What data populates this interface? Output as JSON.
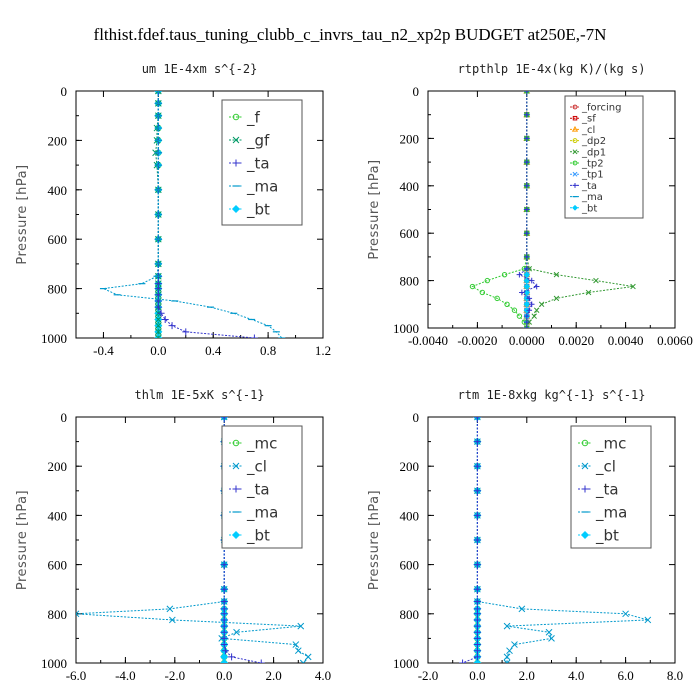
{
  "figure_title": "flthist.fdef.taus_tuning_clubb_c_invrs_tau_n2_xp2p  BUDGET at250E,-7N",
  "chart_data": [
    {
      "type": "line",
      "title": "um   1E-4xm s^{-2}",
      "ylabel": "Pressure [hPa]",
      "xlim": [
        -0.6,
        1.2
      ],
      "ylim": [
        1000,
        0
      ],
      "xticks": [
        -0.4,
        0.0,
        0.4,
        0.8,
        1.2
      ],
      "xtick_labels": [
        "-0.4",
        "0.0",
        "0.4",
        "0.8",
        "1.2"
      ],
      "yticks": [
        0,
        200,
        400,
        600,
        800,
        1000
      ],
      "ytick_labels": [
        "0",
        "200",
        "400",
        "600",
        "800",
        "1000"
      ],
      "legend": {
        "position": "top-right",
        "entries": [
          "_f",
          "_gf",
          "_ta",
          "_ma",
          "_bt"
        ]
      },
      "y": [
        0,
        50,
        100,
        150,
        200,
        250,
        300,
        400,
        500,
        600,
        700,
        750,
        780,
        800,
        825,
        850,
        875,
        900,
        925,
        950,
        975,
        1000
      ],
      "series": [
        {
          "name": "_f",
          "color": "#33cc33",
          "marker": "circle",
          "x": [
            0.0,
            0.0,
            0.0,
            0.0,
            0.0,
            0.0,
            0.0,
            0.0,
            0.0,
            0.0,
            0.0,
            0.0,
            0.0,
            0.0,
            0.0,
            0.0,
            0.0,
            0.0,
            0.0,
            0.0,
            0.0,
            0.0
          ]
        },
        {
          "name": "_gf",
          "color": "#009966",
          "marker": "x",
          "x": [
            0.0,
            0.0,
            0.0,
            -0.01,
            -0.01,
            -0.02,
            -0.01,
            0.0,
            0.0,
            0.0,
            0.0,
            0.0,
            0.0,
            0.0,
            0.0,
            0.0,
            0.0,
            0.0,
            0.0,
            0.0,
            0.0,
            0.0
          ]
        },
        {
          "name": "_ta",
          "color": "#3333cc",
          "marker": "plus",
          "x": [
            0.0,
            0.0,
            0.0,
            0.0,
            0.0,
            0.0,
            0.0,
            0.0,
            0.0,
            0.0,
            0.0,
            0.0,
            0.0,
            0.0,
            0.0,
            0.0,
            0.0,
            0.02,
            0.05,
            0.1,
            0.2,
            0.7
          ]
        },
        {
          "name": "_ma",
          "color": "#0099cc",
          "marker": "dash",
          "x": [
            0.0,
            0.0,
            0.0,
            0.0,
            0.0,
            0.0,
            0.0,
            0.0,
            0.0,
            0.0,
            0.0,
            -0.01,
            -0.12,
            -0.4,
            -0.3,
            0.12,
            0.38,
            0.55,
            0.68,
            0.8,
            0.86,
            0.9
          ]
        },
        {
          "name": "_bt",
          "color": "#00ccff",
          "marker": "diamond",
          "x": [
            0.0,
            0.0,
            0.0,
            0.0,
            0.0,
            0.0,
            0.0,
            0.0,
            0.0,
            0.0,
            0.0,
            0.0,
            0.0,
            0.0,
            0.0,
            0.0,
            0.0,
            0.0,
            0.0,
            0.0,
            0.0,
            0.0
          ]
        }
      ]
    },
    {
      "type": "line",
      "title": "rtpthlp   1E-4x(kg K)/(kg s)",
      "ylabel": "Pressure [hPa]",
      "xlim": [
        -0.004,
        0.006
      ],
      "ylim": [
        1000,
        0
      ],
      "xticks": [
        -0.004,
        -0.002,
        0.0,
        0.002,
        0.004,
        0.006
      ],
      "xtick_labels": [
        "-0.0040",
        "-0.0020",
        "0.0000",
        "0.0020",
        "0.0040",
        "0.0060"
      ],
      "yticks": [
        0,
        200,
        400,
        600,
        800,
        1000
      ],
      "ytick_labels": [
        "0",
        "200",
        "400",
        "600",
        "800",
        "1000"
      ],
      "legend": {
        "position": "top-right",
        "entries": [
          "_forcing",
          "_sf",
          "_cl",
          "_dp2",
          "_dp1",
          "_tp2",
          "_tp1",
          "_ta",
          "_ma",
          "_bt"
        ]
      },
      "y": [
        0,
        100,
        200,
        300,
        400,
        500,
        600,
        700,
        750,
        775,
        800,
        825,
        850,
        875,
        900,
        925,
        950,
        975,
        1000
      ],
      "series": [
        {
          "name": "_forcing",
          "color": "#cc3333",
          "marker": "circle",
          "x": [
            0,
            0,
            0,
            0,
            0,
            0,
            0,
            0,
            0,
            0,
            0,
            0,
            0,
            0,
            0,
            0,
            0,
            0,
            0
          ]
        },
        {
          "name": "_sf",
          "color": "#cc0000",
          "marker": "square",
          "x": [
            0,
            0,
            0,
            0,
            0,
            0,
            0,
            0,
            0,
            0,
            0,
            0,
            0,
            0,
            0,
            0,
            0,
            0,
            0
          ]
        },
        {
          "name": "_cl",
          "color": "#ff9900",
          "marker": "triangle",
          "x": [
            0,
            0,
            0,
            0,
            0,
            0,
            0,
            0,
            0,
            0,
            0,
            0,
            0,
            0,
            0,
            0,
            0,
            0,
            0
          ]
        },
        {
          "name": "_dp2",
          "color": "#cccc00",
          "marker": "circle",
          "x": [
            0,
            0,
            0,
            0,
            0,
            0,
            0,
            0,
            0,
            0,
            0,
            0,
            0,
            0,
            0,
            0,
            0,
            0,
            0
          ]
        },
        {
          "name": "_dp1",
          "color": "#339933",
          "marker": "x",
          "x": [
            0,
            0,
            0,
            0,
            0,
            0,
            0,
            0,
            0.0001,
            0.0012,
            0.0028,
            0.0043,
            0.0025,
            0.0012,
            0.0006,
            0.0004,
            0.0003,
            0.0001,
            0
          ]
        },
        {
          "name": "_tp2",
          "color": "#33cc33",
          "marker": "circle",
          "x": [
            0,
            0,
            0,
            0,
            0,
            0,
            0,
            0,
            -0.0001,
            -0.0009,
            -0.0016,
            -0.0022,
            -0.0018,
            -0.0012,
            -0.0008,
            -0.0005,
            -0.0003,
            -0.0001,
            0
          ]
        },
        {
          "name": "_tp1",
          "color": "#3399ff",
          "marker": "x",
          "x": [
            0,
            0,
            0,
            0,
            0,
            0,
            0,
            0,
            0,
            0,
            0,
            0,
            0,
            0,
            0,
            0,
            0,
            0,
            0
          ]
        },
        {
          "name": "_ta",
          "color": "#3333cc",
          "marker": "plus",
          "x": [
            0,
            0,
            0,
            0,
            0,
            0,
            0,
            0,
            0,
            -0.0003,
            0.0002,
            0.0004,
            -0.0002,
            0.0001,
            0.0002,
            0.0001,
            0,
            0,
            0
          ]
        },
        {
          "name": "_ma",
          "color": "#0099cc",
          "marker": "dash",
          "x": [
            0,
            0,
            0,
            0,
            0,
            0,
            0,
            0,
            0,
            0,
            0,
            0,
            0,
            0,
            0,
            0,
            0,
            0,
            0
          ]
        },
        {
          "name": "_bt",
          "color": "#00ccff",
          "marker": "diamond",
          "x": [
            0,
            0,
            0,
            0,
            0,
            0,
            0,
            0,
            0,
            0,
            0,
            0,
            0,
            0,
            0,
            0,
            0,
            0,
            0
          ]
        }
      ]
    },
    {
      "type": "line",
      "title": "thlm   1E-5xK s^{-1}",
      "ylabel": "Pressure [hPa]",
      "xlim": [
        -6.0,
        4.0
      ],
      "ylim": [
        1000,
        0
      ],
      "xticks": [
        -6.0,
        -4.0,
        -2.0,
        0.0,
        2.0,
        4.0
      ],
      "xtick_labels": [
        "-6.0",
        "-4.0",
        "-2.0",
        "0.0",
        "2.0",
        "4.0"
      ],
      "yticks": [
        0,
        200,
        400,
        600,
        800,
        1000
      ],
      "ytick_labels": [
        "0",
        "200",
        "400",
        "600",
        "800",
        "1000"
      ],
      "legend": {
        "position": "top-right",
        "entries": [
          "_mc",
          "_cl",
          "_ta",
          "_ma",
          "_bt"
        ]
      },
      "y": [
        0,
        100,
        200,
        300,
        400,
        500,
        600,
        700,
        750,
        780,
        800,
        825,
        850,
        875,
        900,
        925,
        950,
        975,
        1000
      ],
      "series": [
        {
          "name": "_mc",
          "color": "#33cc33",
          "marker": "circle",
          "x": [
            0,
            0,
            0,
            0,
            0,
            0,
            0,
            0,
            0,
            0,
            0,
            0,
            0,
            0,
            0,
            0,
            0,
            0,
            0
          ]
        },
        {
          "name": "_cl",
          "color": "#0099cc",
          "marker": "x",
          "x": [
            0,
            0,
            0,
            0,
            0,
            0,
            0,
            0,
            0,
            -2.2,
            -6.0,
            -2.1,
            3.1,
            0.5,
            -0.1,
            2.9,
            3.0,
            3.4,
            3.2
          ]
        },
        {
          "name": "_ta",
          "color": "#3333cc",
          "marker": "plus",
          "x": [
            0,
            0,
            0,
            0,
            0,
            0,
            0,
            0,
            0,
            0,
            0,
            0,
            0,
            0,
            0,
            0,
            0.05,
            0.3,
            1.5
          ]
        },
        {
          "name": "_ma",
          "color": "#0099cc",
          "marker": "dash",
          "x": [
            0,
            0,
            0,
            0,
            0,
            0,
            0,
            0,
            0,
            0,
            0,
            0,
            0,
            0,
            0,
            0,
            0,
            0,
            0
          ]
        },
        {
          "name": "_bt",
          "color": "#00ccff",
          "marker": "diamond",
          "x": [
            0,
            0,
            0,
            0,
            0,
            0,
            0,
            0,
            0,
            0,
            0,
            0,
            0,
            0,
            0,
            0,
            0,
            0,
            0
          ]
        }
      ]
    },
    {
      "type": "line",
      "title": "rtm   1E-8xkg kg^{-1} s^{-1}",
      "ylabel": "Pressure [hPa]",
      "xlim": [
        -2.0,
        8.0
      ],
      "ylim": [
        1000,
        0
      ],
      "xticks": [
        -2.0,
        0.0,
        2.0,
        4.0,
        6.0,
        8.0
      ],
      "xtick_labels": [
        "-2.0",
        "0.0",
        "2.0",
        "4.0",
        "6.0",
        "8.0"
      ],
      "yticks": [
        0,
        200,
        400,
        600,
        800,
        1000
      ],
      "ytick_labels": [
        "0",
        "200",
        "400",
        "600",
        "800",
        "1000"
      ],
      "legend": {
        "position": "top-right",
        "entries": [
          "_mc",
          "_cl",
          "_ta",
          "_ma",
          "_bt"
        ]
      },
      "y": [
        0,
        100,
        200,
        300,
        400,
        500,
        600,
        700,
        750,
        780,
        800,
        825,
        850,
        875,
        900,
        925,
        950,
        975,
        1000
      ],
      "series": [
        {
          "name": "_mc",
          "color": "#33cc33",
          "marker": "circle",
          "x": [
            0,
            0,
            0,
            0,
            0,
            0,
            0,
            0,
            0,
            0,
            0,
            0,
            0,
            0,
            0,
            0,
            0,
            0,
            0
          ]
        },
        {
          "name": "_cl",
          "color": "#0099cc",
          "marker": "x",
          "x": [
            0,
            0,
            0,
            0,
            0,
            0,
            0,
            0,
            0,
            1.8,
            6.0,
            6.9,
            1.2,
            2.9,
            3.0,
            1.5,
            1.3,
            1.2,
            1.2
          ]
        },
        {
          "name": "_ta",
          "color": "#3333cc",
          "marker": "plus",
          "x": [
            0,
            0,
            0,
            0,
            0,
            0,
            0,
            0,
            0,
            0,
            0,
            0,
            0,
            0,
            0,
            0,
            0,
            0,
            -0.6
          ]
        },
        {
          "name": "_ma",
          "color": "#0099cc",
          "marker": "dash",
          "x": [
            0,
            0,
            0,
            0,
            0,
            0,
            0,
            0,
            0,
            0,
            0,
            0,
            0,
            0,
            0,
            0,
            0,
            0,
            0
          ]
        },
        {
          "name": "_bt",
          "color": "#00ccff",
          "marker": "diamond",
          "x": [
            0,
            0,
            0,
            0,
            0,
            0,
            0,
            0,
            0,
            0,
            0,
            0,
            0,
            0,
            0,
            0,
            0,
            0,
            0
          ]
        }
      ]
    }
  ]
}
